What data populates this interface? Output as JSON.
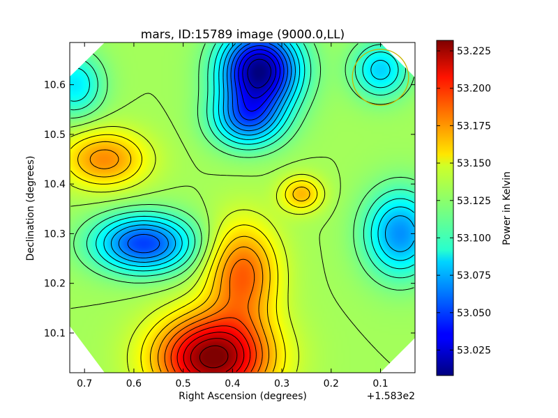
{
  "chart_data": {
    "type": "heatmap",
    "title": "mars, ID:15789 image (9000.0,LL)",
    "xlabel": "Right Ascension (degrees)",
    "ylabel": "Declination (degrees)",
    "x_offset_label": "+1.583e2",
    "xlim": [
      0.73,
      0.03
    ],
    "ylim": [
      10.02,
      10.685
    ],
    "x_ticks": [
      0.7,
      0.6,
      0.5,
      0.4,
      0.3,
      0.2,
      0.1
    ],
    "x_tick_labels": [
      "0.7",
      "0.6",
      "0.5",
      "0.4",
      "0.3",
      "0.2",
      "0.1"
    ],
    "y_ticks": [
      10.1,
      10.2,
      10.3,
      10.4,
      10.5,
      10.6
    ],
    "y_tick_labels": [
      "10.1",
      "10.2",
      "10.3",
      "10.4",
      "10.5",
      "10.6"
    ],
    "colormap": "jet",
    "colorbar": {
      "label": "Power in Kelvin",
      "vmin": 53.008,
      "vmax": 53.232,
      "ticks": [
        53.025,
        53.05,
        53.075,
        53.1,
        53.125,
        53.15,
        53.175,
        53.2,
        53.225
      ],
      "tick_labels": [
        "53.025",
        "53.050",
        "53.075",
        "53.100",
        "53.125",
        "53.150",
        "53.175",
        "53.200",
        "53.225"
      ]
    },
    "base_level": 53.128,
    "features": [
      {
        "kind": "min",
        "x": 0.345,
        "y": 10.63,
        "amplitude": -0.118,
        "sigma_x": 0.055,
        "sigma_y": 0.055
      },
      {
        "kind": "min",
        "x": 0.37,
        "y": 10.53,
        "amplitude": -0.06,
        "sigma_x": 0.05,
        "sigma_y": 0.04
      },
      {
        "kind": "min",
        "x": 0.58,
        "y": 10.28,
        "amplitude": -0.078,
        "sigma_x": 0.07,
        "sigma_y": 0.04
      },
      {
        "kind": "min",
        "x": 0.72,
        "y": 10.6,
        "amplitude": -0.04,
        "sigma_x": 0.04,
        "sigma_y": 0.045
      },
      {
        "kind": "min",
        "x": 0.06,
        "y": 10.3,
        "amplitude": -0.06,
        "sigma_x": 0.05,
        "sigma_y": 0.06
      },
      {
        "kind": "min",
        "x": 0.1,
        "y": 10.63,
        "amplitude": -0.045,
        "sigma_x": 0.04,
        "sigma_y": 0.04
      },
      {
        "kind": "max",
        "x": 0.66,
        "y": 10.45,
        "amplitude": 0.045,
        "sigma_x": 0.06,
        "sigma_y": 0.04
      },
      {
        "kind": "max",
        "x": 0.44,
        "y": 10.05,
        "amplitude": 0.105,
        "sigma_x": 0.08,
        "sigma_y": 0.06
      },
      {
        "kind": "max",
        "x": 0.38,
        "y": 10.22,
        "amplitude": 0.055,
        "sigma_x": 0.05,
        "sigma_y": 0.07
      },
      {
        "kind": "max",
        "x": 0.26,
        "y": 10.38,
        "amplitude": 0.035,
        "sigma_x": 0.03,
        "sigma_y": 0.025
      }
    ],
    "beam_circle": {
      "x": 0.1,
      "y": 10.615,
      "radius_x": 0.057,
      "color": "#c8b400"
    },
    "footprint": "octagon",
    "contour_color": "#000000"
  }
}
